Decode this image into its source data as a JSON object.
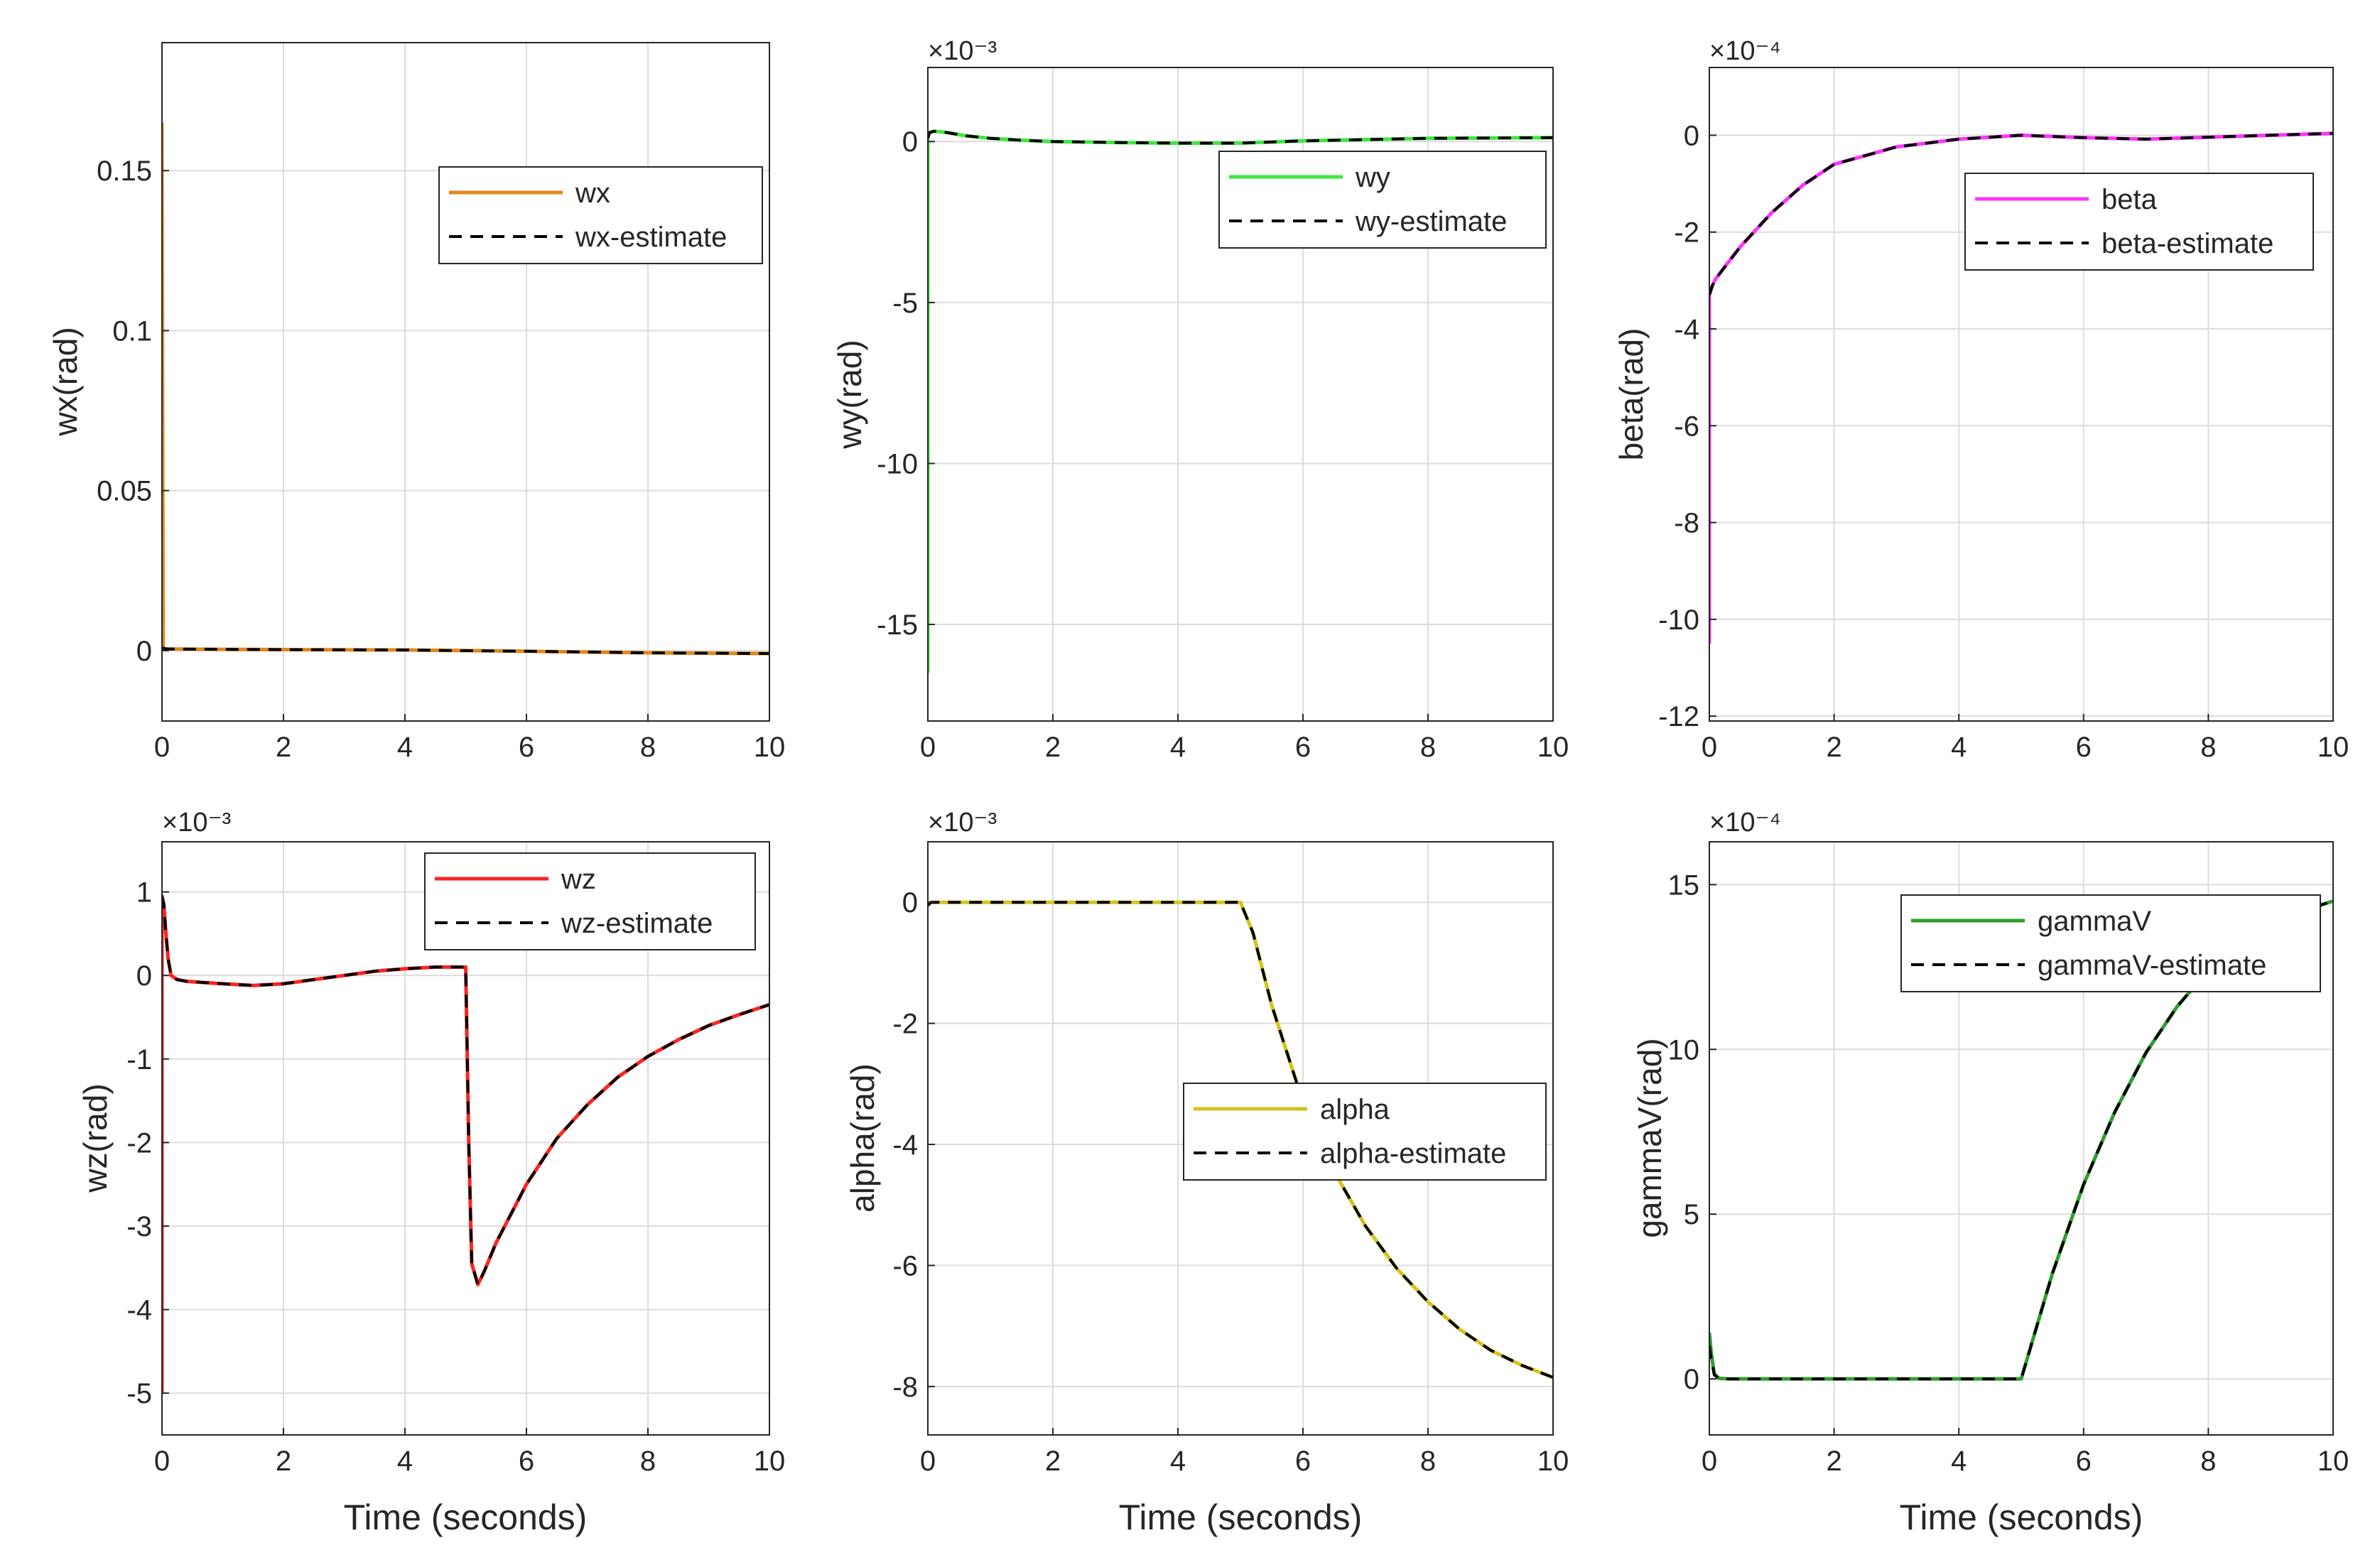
{
  "figure": {
    "background": "#ffffff",
    "grid_color": "#dcdcdc",
    "axis_color": "#262626"
  },
  "chart_data": [
    {
      "type": "line",
      "ylabel": "wx(rad)",
      "xlabel": "",
      "exponent_label": "",
      "xlim": [
        0,
        10
      ],
      "ylim": [
        -0.022,
        0.19
      ],
      "xticks": [
        0,
        2,
        4,
        6,
        8,
        10
      ],
      "xtick_labels": [
        "0",
        "2",
        "4",
        "6",
        "8",
        "10"
      ],
      "yticks": [
        0,
        0.05,
        0.1,
        0.15
      ],
      "ytick_labels": [
        "0",
        "0.05",
        "0.1",
        "0.15"
      ],
      "grid": true,
      "legend_position": "top-right",
      "series": [
        {
          "name": "wx",
          "color": "#e0871c",
          "dash": "solid",
          "x": [
            0,
            0,
            0.02,
            0.05,
            0.1,
            1,
            2,
            4,
            6,
            8,
            10
          ],
          "y": [
            0.165,
            0.16,
            0.0008,
            0.0006,
            0.0005,
            0.0004,
            0.0003,
            0.0002,
            -0.0002,
            -0.0007,
            -0.0009
          ]
        },
        {
          "name": "wx-estimate",
          "color": "#000000",
          "dash": "dashed",
          "x": [
            0,
            0.02,
            0.05,
            0.1,
            1,
            2,
            4,
            6,
            8,
            10
          ],
          "y": [
            0.0008,
            0.0008,
            0.0006,
            0.0005,
            0.0004,
            0.0003,
            0.0002,
            -0.0002,
            -0.0007,
            -0.0009
          ]
        }
      ]
    },
    {
      "type": "line",
      "ylabel": "wy(rad)",
      "xlabel": "",
      "exponent_label": "×10⁻³",
      "xlim": [
        0,
        10
      ],
      "ylim": [
        -18,
        2.3
      ],
      "xticks": [
        0,
        2,
        4,
        6,
        8,
        10
      ],
      "xtick_labels": [
        "0",
        "2",
        "4",
        "6",
        "8",
        "10"
      ],
      "yticks": [
        -15,
        -10,
        -5,
        0
      ],
      "ytick_labels": [
        "-15",
        "-10",
        "-5",
        "0"
      ],
      "grid": true,
      "legend_position": "top-right",
      "series": [
        {
          "name": "wy",
          "color": "#3de83d",
          "dash": "solid",
          "x": [
            0,
            0,
            0.03,
            0.1,
            0.3,
            0.6,
            1,
            1.5,
            2,
            3,
            4,
            5,
            6,
            7,
            8,
            10
          ],
          "y": [
            -16.5,
            0.2,
            0.28,
            0.32,
            0.28,
            0.18,
            0.1,
            0.04,
            0,
            -0.03,
            -0.05,
            -0.05,
            0.02,
            0.06,
            0.1,
            0.12
          ]
        },
        {
          "name": "wy-estimate",
          "color": "#000000",
          "dash": "dashed",
          "x": [
            0,
            0.03,
            0.1,
            0.3,
            0.6,
            1,
            1.5,
            2,
            3,
            4,
            5,
            6,
            7,
            8,
            10
          ],
          "y": [
            0.1,
            0.28,
            0.32,
            0.28,
            0.18,
            0.1,
            0.04,
            0,
            -0.03,
            -0.05,
            -0.05,
            0.02,
            0.06,
            0.1,
            0.12
          ]
        }
      ]
    },
    {
      "type": "line",
      "ylabel": "beta(rad)",
      "xlabel": "",
      "exponent_label": "×10⁻⁴",
      "xlim": [
        0,
        10
      ],
      "ylim": [
        -12.1,
        1.4
      ],
      "xticks": [
        0,
        2,
        4,
        6,
        8,
        10
      ],
      "xtick_labels": [
        "0",
        "2",
        "4",
        "6",
        "8",
        "10"
      ],
      "yticks": [
        -12,
        -10,
        -8,
        -6,
        -4,
        -2,
        0
      ],
      "ytick_labels": [
        "-12",
        "-10",
        "-8",
        "-6",
        "-4",
        "-2",
        "0"
      ],
      "grid": true,
      "legend_position": "top-right",
      "series": [
        {
          "name": "beta",
          "color": "#ff33ff",
          "dash": "solid",
          "x": [
            0,
            0,
            0.05,
            0.1,
            0.2,
            0.3,
            0.5,
            0.75,
            1,
            1.5,
            2,
            3,
            4,
            5,
            6,
            7,
            8,
            9,
            10
          ],
          "y": [
            -10.5,
            -3.3,
            -3.1,
            -2.97,
            -2.8,
            -2.63,
            -2.3,
            -1.95,
            -1.6,
            -1.03,
            -0.6,
            -0.24,
            -0.08,
            0,
            -0.05,
            -0.08,
            -0.04,
            0,
            0.04
          ]
        },
        {
          "name": "beta-estimate",
          "color": "#000000",
          "dash": "dashed",
          "x": [
            0,
            0.05,
            0.1,
            0.2,
            0.3,
            0.5,
            0.75,
            1,
            1.5,
            2,
            3,
            4,
            5,
            6,
            7,
            8,
            9,
            10
          ],
          "y": [
            -3.3,
            -3.1,
            -2.97,
            -2.8,
            -2.63,
            -2.3,
            -1.95,
            -1.6,
            -1.03,
            -0.6,
            -0.24,
            -0.08,
            0,
            -0.05,
            -0.08,
            -0.04,
            0,
            0.04
          ]
        }
      ]
    },
    {
      "type": "line",
      "ylabel": "wz(rad)",
      "xlabel": "Time (seconds)",
      "exponent_label": "×10⁻³",
      "xlim": [
        0,
        10
      ],
      "ylim": [
        -5.5,
        1.6
      ],
      "xticks": [
        0,
        2,
        4,
        6,
        8,
        10
      ],
      "xtick_labels": [
        "0",
        "2",
        "4",
        "6",
        "8",
        "10"
      ],
      "yticks": [
        -5,
        -4,
        -3,
        -2,
        -1,
        0,
        1
      ],
      "ytick_labels": [
        "-5",
        "-4",
        "-3",
        "-2",
        "-1",
        "0",
        "1"
      ],
      "grid": true,
      "legend_position": "top-right",
      "series": [
        {
          "name": "wz",
          "color": "#ff2222",
          "dash": "solid",
          "x": [
            0,
            0,
            0.03,
            0.06,
            0.1,
            0.15,
            0.25,
            0.4,
            0.6,
            1,
            1.5,
            2,
            2.5,
            3,
            3.5,
            4,
            4.5,
            5,
            5.05,
            5.1,
            5.2,
            5.3,
            5.5,
            6,
            6.5,
            7,
            7.5,
            8,
            8.5,
            9,
            9.5,
            10
          ],
          "y": [
            -5,
            0.95,
            0.85,
            0.55,
            0.2,
            0,
            -0.05,
            -0.07,
            -0.08,
            -0.1,
            -0.12,
            -0.1,
            -0.05,
            0,
            0.05,
            0.08,
            0.1,
            0.1,
            -2,
            -3.45,
            -3.7,
            -3.55,
            -3.2,
            -2.5,
            -1.95,
            -1.55,
            -1.22,
            -0.97,
            -0.77,
            -0.6,
            -0.47,
            -0.35
          ]
        },
        {
          "name": "wz-estimate",
          "color": "#000000",
          "dash": "dashed",
          "x": [
            0,
            0.03,
            0.06,
            0.1,
            0.15,
            0.25,
            0.4,
            0.6,
            1,
            1.5,
            2,
            2.5,
            3,
            3.5,
            4,
            4.5,
            5,
            5.05,
            5.1,
            5.2,
            5.3,
            5.5,
            6,
            6.5,
            7,
            7.5,
            8,
            8.5,
            9,
            9.5,
            10
          ],
          "y": [
            0.95,
            0.85,
            0.55,
            0.2,
            0,
            -0.05,
            -0.07,
            -0.08,
            -0.1,
            -0.12,
            -0.1,
            -0.05,
            0,
            0.05,
            0.08,
            0.1,
            0.1,
            -2,
            -3.45,
            -3.7,
            -3.55,
            -3.2,
            -2.5,
            -1.95,
            -1.55,
            -1.22,
            -0.97,
            -0.77,
            -0.6,
            -0.47,
            -0.35
          ]
        }
      ]
    },
    {
      "type": "line",
      "ylabel": "alpha(rad)",
      "xlabel": "Time (seconds)",
      "exponent_label": "×10⁻³",
      "xlim": [
        0,
        10
      ],
      "ylim": [
        -8.8,
        1.0
      ],
      "xticks": [
        0,
        2,
        4,
        6,
        8,
        10
      ],
      "xtick_labels": [
        "0",
        "2",
        "4",
        "6",
        "8",
        "10"
      ],
      "yticks": [
        -8,
        -6,
        -4,
        -2,
        0
      ],
      "ytick_labels": [
        "-8",
        "-6",
        "-4",
        "-2",
        "0"
      ],
      "grid": true,
      "legend_position": "right",
      "series": [
        {
          "name": "alpha",
          "color": "#d4c21c",
          "dash": "solid",
          "x": [
            0,
            0.05,
            1,
            2,
            3,
            4,
            5,
            5.2,
            5.5,
            6,
            6.5,
            7,
            7.5,
            8,
            8.5,
            9,
            9.5,
            10
          ],
          "y": [
            -0.05,
            0,
            0,
            0,
            0,
            0,
            0,
            -0.5,
            -1.7,
            -3.3,
            -4.45,
            -5.35,
            -6.05,
            -6.6,
            -7.05,
            -7.4,
            -7.65,
            -7.85
          ]
        },
        {
          "name": "alpha-estimate",
          "color": "#000000",
          "dash": "dashed",
          "x": [
            0,
            0.05,
            1,
            2,
            3,
            4,
            5,
            5.2,
            5.5,
            6,
            6.5,
            7,
            7.5,
            8,
            8.5,
            9,
            9.5,
            10
          ],
          "y": [
            -0.05,
            0,
            0,
            0,
            0,
            0,
            0,
            -0.5,
            -1.7,
            -3.3,
            -4.45,
            -5.35,
            -6.05,
            -6.6,
            -7.05,
            -7.4,
            -7.65,
            -7.85
          ]
        }
      ]
    },
    {
      "type": "line",
      "ylabel": "gammaV(rad)",
      "xlabel": "Time (seconds)",
      "exponent_label": "×10⁻⁴",
      "xlim": [
        0,
        10
      ],
      "ylim": [
        -1.7,
        16.3
      ],
      "xticks": [
        0,
        2,
        4,
        6,
        8,
        10
      ],
      "xtick_labels": [
        "0",
        "2",
        "4",
        "6",
        "8",
        "10"
      ],
      "yticks": [
        0,
        5,
        10,
        15
      ],
      "ytick_labels": [
        "0",
        "5",
        "10",
        "15"
      ],
      "grid": true,
      "legend_position": "top-right",
      "series": [
        {
          "name": "gammaV",
          "color": "#2e9e2e",
          "dash": "solid",
          "x": [
            0,
            0.03,
            0.08,
            0.15,
            0.3,
            1,
            2,
            3,
            4,
            5,
            5.5,
            6,
            6.5,
            7,
            7.5,
            8,
            8.5,
            9,
            9.5,
            10
          ],
          "y": [
            1.4,
            0.8,
            0.15,
            0.02,
            0,
            0,
            0,
            0,
            0,
            0,
            3.2,
            5.9,
            8.1,
            9.9,
            11.3,
            12.4,
            13.2,
            13.8,
            14.2,
            14.5
          ]
        },
        {
          "name": "gammaV-estimate",
          "color": "#000000",
          "dash": "dashed",
          "x": [
            0,
            0.03,
            0.08,
            0.15,
            0.3,
            1,
            2,
            3,
            4,
            5,
            5.5,
            6,
            6.5,
            7,
            7.5,
            8,
            8.5,
            9,
            9.5,
            10
          ],
          "y": [
            1.0,
            0.6,
            0.12,
            0.02,
            0,
            0,
            0,
            0,
            0,
            0,
            3.2,
            5.9,
            8.1,
            9.9,
            11.3,
            12.4,
            13.2,
            13.8,
            14.2,
            14.5
          ]
        }
      ]
    }
  ]
}
